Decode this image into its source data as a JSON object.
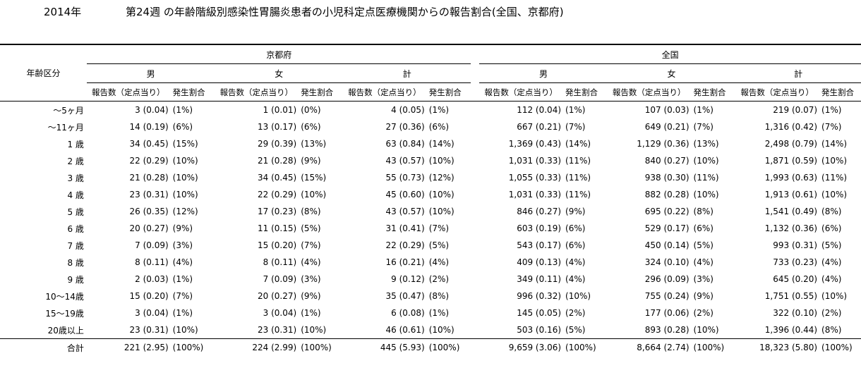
{
  "header": {
    "year": "2014年",
    "title": "第24週 の年齢階級別感染性胃腸炎患者の小児科定点医療機関からの報告割合(全国、京都府)"
  },
  "table": {
    "age_header": "年齢区分",
    "regions": [
      "京都府",
      "全国"
    ],
    "genders": [
      "男",
      "女",
      "計"
    ],
    "sub": {
      "count": "報告数（定点当り）",
      "rate": "発生割合"
    },
    "rows": [
      {
        "age": "〜5ヶ月",
        "k": [
          [
            "3 (0.04)",
            "(1%)"
          ],
          [
            "1 (0.01)",
            "(0%)"
          ],
          [
            "4 (0.05)",
            "(1%)"
          ]
        ],
        "z": [
          [
            "112 (0.04)",
            "(1%)"
          ],
          [
            "107 (0.03)",
            "(1%)"
          ],
          [
            "219 (0.07)",
            "(1%)"
          ]
        ]
      },
      {
        "age": "〜11ヶ月",
        "k": [
          [
            "14 (0.19)",
            "(6%)"
          ],
          [
            "13 (0.17)",
            "(6%)"
          ],
          [
            "27 (0.36)",
            "(6%)"
          ]
        ],
        "z": [
          [
            "667 (0.21)",
            "(7%)"
          ],
          [
            "649 (0.21)",
            "(7%)"
          ],
          [
            "1,316 (0.42)",
            "(7%)"
          ]
        ]
      },
      {
        "age": "1 歳",
        "k": [
          [
            "34 (0.45)",
            "(15%)"
          ],
          [
            "29 (0.39)",
            "(13%)"
          ],
          [
            "63 (0.84)",
            "(14%)"
          ]
        ],
        "z": [
          [
            "1,369 (0.43)",
            "(14%)"
          ],
          [
            "1,129 (0.36)",
            "(13%)"
          ],
          [
            "2,498 (0.79)",
            "(14%)"
          ]
        ]
      },
      {
        "age": "2 歳",
        "k": [
          [
            "22 (0.29)",
            "(10%)"
          ],
          [
            "21 (0.28)",
            "(9%)"
          ],
          [
            "43 (0.57)",
            "(10%)"
          ]
        ],
        "z": [
          [
            "1,031 (0.33)",
            "(11%)"
          ],
          [
            "840 (0.27)",
            "(10%)"
          ],
          [
            "1,871 (0.59)",
            "(10%)"
          ]
        ]
      },
      {
        "age": "3 歳",
        "k": [
          [
            "21 (0.28)",
            "(10%)"
          ],
          [
            "34 (0.45)",
            "(15%)"
          ],
          [
            "55 (0.73)",
            "(12%)"
          ]
        ],
        "z": [
          [
            "1,055 (0.33)",
            "(11%)"
          ],
          [
            "938 (0.30)",
            "(11%)"
          ],
          [
            "1,993 (0.63)",
            "(11%)"
          ]
        ]
      },
      {
        "age": "4 歳",
        "k": [
          [
            "23 (0.31)",
            "(10%)"
          ],
          [
            "22 (0.29)",
            "(10%)"
          ],
          [
            "45 (0.60)",
            "(10%)"
          ]
        ],
        "z": [
          [
            "1,031 (0.33)",
            "(11%)"
          ],
          [
            "882 (0.28)",
            "(10%)"
          ],
          [
            "1,913 (0.61)",
            "(10%)"
          ]
        ]
      },
      {
        "age": "5 歳",
        "k": [
          [
            "26 (0.35)",
            "(12%)"
          ],
          [
            "17 (0.23)",
            "(8%)"
          ],
          [
            "43 (0.57)",
            "(10%)"
          ]
        ],
        "z": [
          [
            "846 (0.27)",
            "(9%)"
          ],
          [
            "695 (0.22)",
            "(8%)"
          ],
          [
            "1,541 (0.49)",
            "(8%)"
          ]
        ]
      },
      {
        "age": "6 歳",
        "k": [
          [
            "20 (0.27)",
            "(9%)"
          ],
          [
            "11 (0.15)",
            "(5%)"
          ],
          [
            "31 (0.41)",
            "(7%)"
          ]
        ],
        "z": [
          [
            "603 (0.19)",
            "(6%)"
          ],
          [
            "529 (0.17)",
            "(6%)"
          ],
          [
            "1,132 (0.36)",
            "(6%)"
          ]
        ]
      },
      {
        "age": "7 歳",
        "k": [
          [
            "7 (0.09)",
            "(3%)"
          ],
          [
            "15 (0.20)",
            "(7%)"
          ],
          [
            "22 (0.29)",
            "(5%)"
          ]
        ],
        "z": [
          [
            "543 (0.17)",
            "(6%)"
          ],
          [
            "450 (0.14)",
            "(5%)"
          ],
          [
            "993 (0.31)",
            "(5%)"
          ]
        ]
      },
      {
        "age": "8 歳",
        "k": [
          [
            "8 (0.11)",
            "(4%)"
          ],
          [
            "8 (0.11)",
            "(4%)"
          ],
          [
            "16 (0.21)",
            "(4%)"
          ]
        ],
        "z": [
          [
            "409 (0.13)",
            "(4%)"
          ],
          [
            "324 (0.10)",
            "(4%)"
          ],
          [
            "733 (0.23)",
            "(4%)"
          ]
        ]
      },
      {
        "age": "9 歳",
        "k": [
          [
            "2 (0.03)",
            "(1%)"
          ],
          [
            "7 (0.09)",
            "(3%)"
          ],
          [
            "9 (0.12)",
            "(2%)"
          ]
        ],
        "z": [
          [
            "349 (0.11)",
            "(4%)"
          ],
          [
            "296 (0.09)",
            "(3%)"
          ],
          [
            "645 (0.20)",
            "(4%)"
          ]
        ]
      },
      {
        "age": "10〜14歳",
        "k": [
          [
            "15 (0.20)",
            "(7%)"
          ],
          [
            "20 (0.27)",
            "(9%)"
          ],
          [
            "35 (0.47)",
            "(8%)"
          ]
        ],
        "z": [
          [
            "996 (0.32)",
            "(10%)"
          ],
          [
            "755 (0.24)",
            "(9%)"
          ],
          [
            "1,751 (0.55)",
            "(10%)"
          ]
        ]
      },
      {
        "age": "15〜19歳",
        "k": [
          [
            "3 (0.04)",
            "(1%)"
          ],
          [
            "3 (0.04)",
            "(1%)"
          ],
          [
            "6 (0.08)",
            "(1%)"
          ]
        ],
        "z": [
          [
            "145 (0.05)",
            "(2%)"
          ],
          [
            "177 (0.06)",
            "(2%)"
          ],
          [
            "322 (0.10)",
            "(2%)"
          ]
        ]
      },
      {
        "age": "20歳以上",
        "k": [
          [
            "23 (0.31)",
            "(10%)"
          ],
          [
            "23 (0.31)",
            "(10%)"
          ],
          [
            "46 (0.61)",
            "(10%)"
          ]
        ],
        "z": [
          [
            "503 (0.16)",
            "(5%)"
          ],
          [
            "893 (0.28)",
            "(10%)"
          ],
          [
            "1,396 (0.44)",
            "(8%)"
          ]
        ]
      },
      {
        "age": "合計",
        "k": [
          [
            "221 (2.95)",
            "(100%)"
          ],
          [
            "224 (2.99)",
            "(100%)"
          ],
          [
            "445 (5.93)",
            "(100%)"
          ]
        ],
        "z": [
          [
            "9,659 (3.06)",
            "(100%)"
          ],
          [
            "8,664 (2.74)",
            "(100%)"
          ],
          [
            "18,323 (5.80)",
            "(100%)"
          ]
        ]
      }
    ]
  }
}
